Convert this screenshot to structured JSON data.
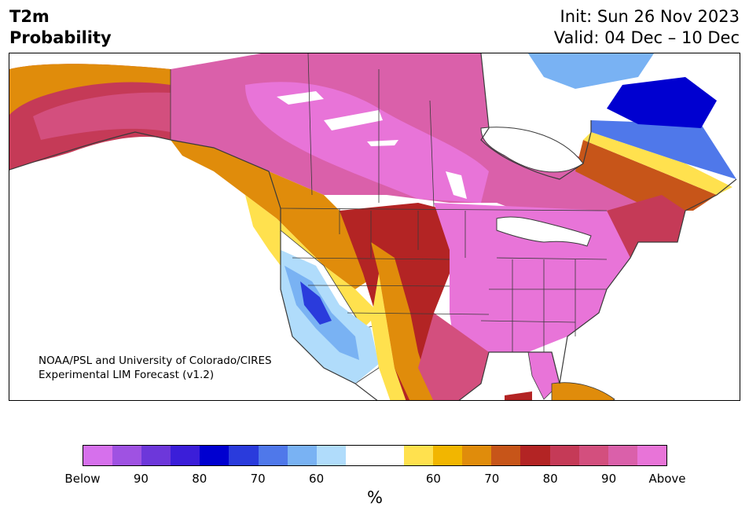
{
  "header": {
    "title_line1": "T2m",
    "title_line2": "Probability",
    "init_text": "Init: Sun 26 Nov 2023",
    "valid_text": "Valid: 04 Dec – 10 Dec"
  },
  "credit": {
    "line1": "NOAA/PSL and University of Colorado/CIRES",
    "line2": "Experimental LIM Forecast (v1.2)"
  },
  "colorbar": {
    "colors": [
      "#d670ec",
      "#9f52e2",
      "#6d37da",
      "#3b1ed9",
      "#0000d0",
      "#2a3bdc",
      "#4f78ea",
      "#79b2f3",
      "#b0dcfb",
      "#ffffff",
      "#ffffff",
      "#ffe14e",
      "#f2b600",
      "#e08c0b",
      "#c75519",
      "#b32424",
      "#c53a57",
      "#d34f7e",
      "#da60aa",
      "#e874d8"
    ],
    "tick_labels": [
      "Below",
      "90",
      "80",
      "70",
      "60",
      "60",
      "70",
      "80",
      "90",
      "Above"
    ],
    "unit_label": "%"
  },
  "map": {
    "ocean_color": "#ffffff",
    "border_color": "#3a3a3a"
  }
}
